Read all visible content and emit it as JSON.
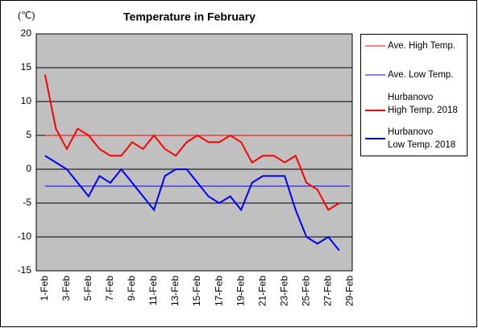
{
  "chart_data": {
    "type": "line",
    "title": "Temperature in February",
    "unit_label": "(℃)",
    "categories": [
      "1-Feb",
      null,
      "3-Feb",
      null,
      "5-Feb",
      null,
      "7-Feb",
      null,
      "9-Feb",
      null,
      "11-Feb",
      null,
      "13-Feb",
      null,
      "15-Feb",
      null,
      "17-Feb",
      null,
      "19-Feb",
      null,
      "21-Feb",
      null,
      "23-Feb",
      null,
      "25-Feb",
      null,
      "27-Feb",
      null,
      "29-Feb"
    ],
    "series": [
      {
        "name": "Ave. High Temp.",
        "color": "#ff0000",
        "width": 1,
        "values": [
          5,
          5,
          5,
          5,
          5,
          5,
          5,
          5,
          5,
          5,
          5,
          5,
          5,
          5,
          5,
          5,
          5,
          5,
          5,
          5,
          5,
          5,
          5,
          5,
          5,
          5,
          5,
          5,
          5
        ]
      },
      {
        "name": "Ave. Low Temp.",
        "color": "#0000ff",
        "width": 1,
        "values": [
          -2.5,
          -2.5,
          -2.5,
          -2.5,
          -2.5,
          -2.5,
          -2.5,
          -2.5,
          -2.5,
          -2.5,
          -2.5,
          -2.5,
          -2.5,
          -2.5,
          -2.5,
          -2.5,
          -2.5,
          -2.5,
          -2.5,
          -2.5,
          -2.5,
          -2.5,
          -2.5,
          -2.5,
          -2.5,
          -2.5,
          -2.5,
          -2.5,
          -2.5
        ]
      },
      {
        "name": "Hurbanovo\nHigh Temp. 2018",
        "color": "#ff0000",
        "width": 2,
        "values": [
          14,
          6,
          3,
          6,
          5,
          3,
          2,
          2,
          4,
          3,
          5,
          3,
          2,
          4,
          5,
          4,
          4,
          5,
          4,
          1,
          2,
          2,
          1,
          2,
          -2,
          -3,
          -6,
          -5,
          null
        ]
      },
      {
        "name": "Hurbanovo\nLow Temp. 2018",
        "color": "#0000ff",
        "width": 2,
        "values": [
          2,
          1,
          0,
          -2,
          -4,
          -1,
          -2,
          0,
          -2,
          -4,
          -6,
          -1,
          0,
          0,
          -2,
          -4,
          -5,
          -4,
          -6,
          -2,
          -1,
          -1,
          -1,
          -6,
          -10,
          -11,
          -10,
          -12,
          null
        ]
      }
    ],
    "ylim": [
      -15,
      20
    ],
    "yticks": [
      -15,
      -10,
      -5,
      0,
      5,
      10,
      15,
      20
    ],
    "grid": true,
    "legend": "right"
  }
}
